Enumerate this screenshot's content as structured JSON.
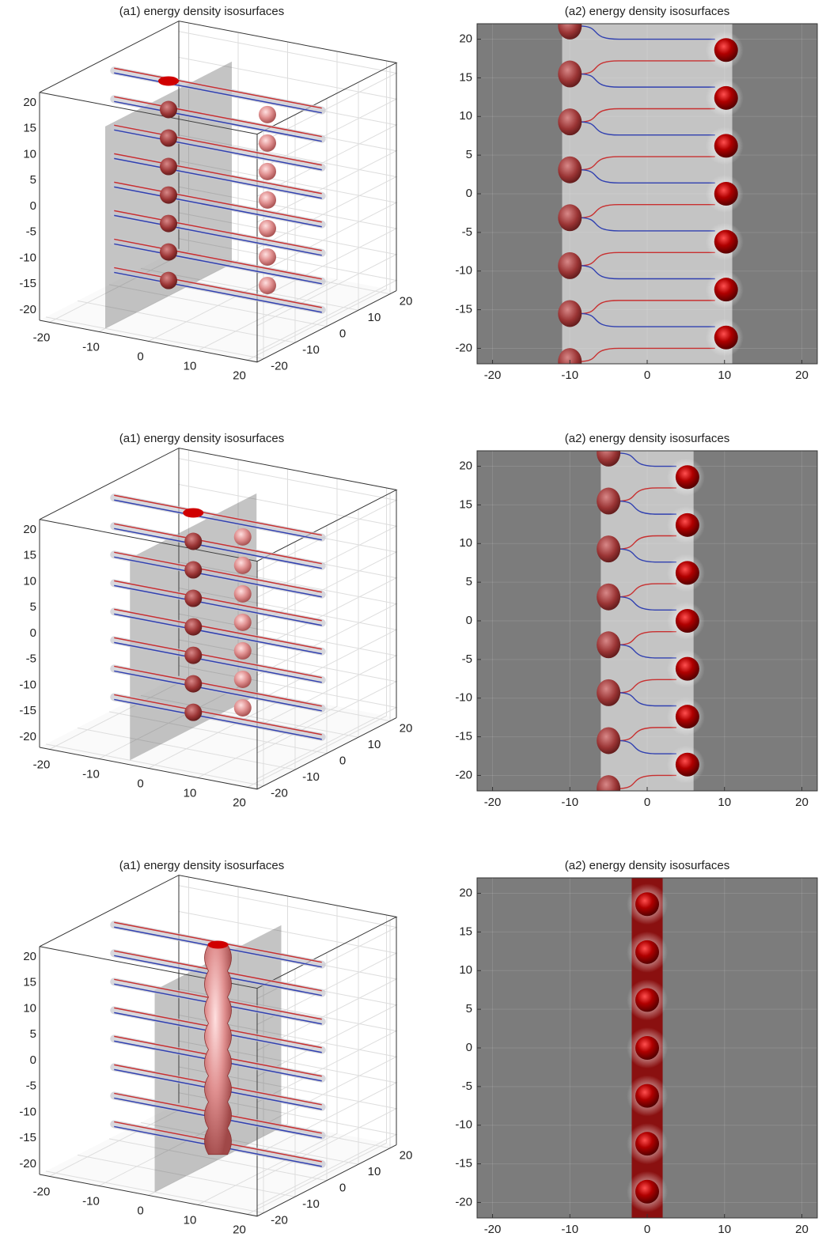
{
  "chart_data": [
    {
      "type": "isosurface-3d",
      "title": "(a1) energy density isosurfaces",
      "xlim": [
        -22,
        22
      ],
      "xticks": [
        -20,
        -10,
        0,
        10,
        20
      ],
      "ylim": [
        -22,
        22
      ],
      "yticks": [
        -20,
        -10,
        0,
        10,
        20
      ],
      "zlim": [
        -22,
        22
      ],
      "zticks": [
        -20,
        -15,
        -10,
        -5,
        0,
        5,
        10,
        15,
        20
      ],
      "grid": true
    },
    {
      "type": "isosurface-2d",
      "title": "(a2) energy density isosurfaces",
      "xlim": [
        -22,
        22
      ],
      "xticks": [
        -20,
        -10,
        0,
        10,
        20
      ],
      "ylim": [
        -22,
        22
      ],
      "yticks": [
        -20,
        -15,
        -10,
        -5,
        0,
        5,
        10,
        15,
        20
      ],
      "grid": true
    },
    {
      "type": "isosurface-3d",
      "title": "(a1) energy density isosurfaces",
      "xlim": [
        -22,
        22
      ],
      "xticks": [
        -20,
        -10,
        0,
        10,
        20
      ],
      "ylim": [
        -22,
        22
      ],
      "yticks": [
        -20,
        -10,
        0,
        10,
        20
      ],
      "zlim": [
        -22,
        22
      ],
      "zticks": [
        -20,
        -15,
        -10,
        -5,
        0,
        5,
        10,
        15,
        20
      ],
      "grid": true
    },
    {
      "type": "isosurface-2d",
      "title": "(a2) energy density isosurfaces",
      "xlim": [
        -22,
        22
      ],
      "xticks": [
        -20,
        -10,
        0,
        10,
        20
      ],
      "ylim": [
        -22,
        22
      ],
      "yticks": [
        -20,
        -15,
        -10,
        -5,
        0,
        5,
        10,
        15,
        20
      ],
      "grid": true
    },
    {
      "type": "isosurface-3d",
      "title": "(a1) energy density isosurfaces",
      "xlim": [
        -22,
        22
      ],
      "xticks": [
        -20,
        -10,
        0,
        10,
        20
      ],
      "ylim": [
        -22,
        22
      ],
      "yticks": [
        -20,
        -10,
        0,
        10,
        20
      ],
      "zlim": [
        -22,
        22
      ],
      "zticks": [
        -20,
        -15,
        -10,
        -5,
        0,
        5,
        10,
        15,
        20
      ],
      "grid": true
    },
    {
      "type": "isosurface-2d",
      "title": "(a2) energy density isosurfaces",
      "xlim": [
        -22,
        22
      ],
      "xticks": [
        -20,
        -10,
        0,
        10,
        20
      ],
      "ylim": [
        -22,
        22
      ],
      "yticks": [
        -20,
        -15,
        -10,
        -5,
        0,
        5,
        10,
        15,
        20
      ],
      "grid": true
    }
  ]
}
